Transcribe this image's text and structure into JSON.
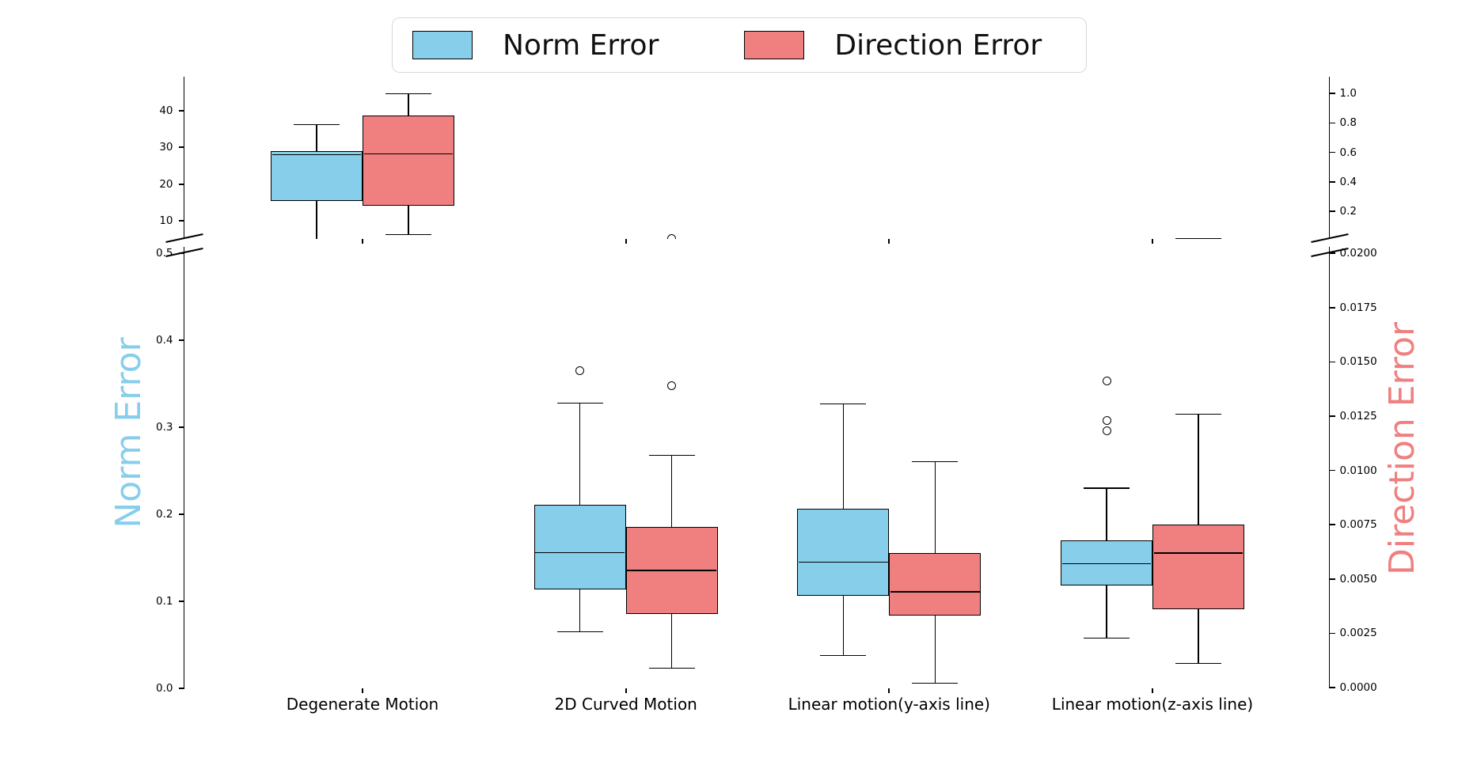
{
  "legend": {
    "items": [
      {
        "label": "Norm Error",
        "color": "#87CEEB"
      },
      {
        "label": "Direction Error",
        "color": "#F08080"
      }
    ]
  },
  "axes": {
    "left": {
      "title": "Norm Error",
      "color": "#87CEEB",
      "top_panel": {
        "range": [
          5.0,
          49.3
        ],
        "ticks": [
          {
            "label": "40",
            "value": 40
          },
          {
            "label": "30",
            "value": 30
          },
          {
            "label": "20",
            "value": 20
          },
          {
            "label": "10",
            "value": 10
          }
        ]
      },
      "bottom_panel": {
        "range": [
          0.0,
          0.507
        ],
        "ticks": [
          {
            "label": "0.5",
            "value": 0.5
          },
          {
            "label": "0.4",
            "value": 0.4
          },
          {
            "label": "0.3",
            "value": 0.3
          },
          {
            "label": "0.2",
            "value": 0.2
          },
          {
            "label": "0.1",
            "value": 0.1
          },
          {
            "label": "0.0",
            "value": 0.0
          }
        ]
      }
    },
    "right": {
      "title": "Direction Error",
      "color": "#F08080",
      "top_panel": {
        "range": [
          0.012,
          1.11
        ],
        "ticks": [
          {
            "label": "1.0",
            "value": 1.0
          },
          {
            "label": "0.8",
            "value": 0.8
          },
          {
            "label": "0.6",
            "value": 0.6
          },
          {
            "label": "0.4",
            "value": 0.4
          },
          {
            "label": "0.2",
            "value": 0.2
          }
        ]
      },
      "bottom_panel": {
        "range": [
          0.0,
          0.0203
        ],
        "ticks": [
          {
            "label": "0.0200",
            "value": 0.02
          },
          {
            "label": "0.0175",
            "value": 0.0175
          },
          {
            "label": "0.0150",
            "value": 0.015
          },
          {
            "label": "0.0125",
            "value": 0.0125
          },
          {
            "label": "0.0100",
            "value": 0.01
          },
          {
            "label": "0.0075",
            "value": 0.0075
          },
          {
            "label": "0.0050",
            "value": 0.005
          },
          {
            "label": "0.0025",
            "value": 0.0025
          },
          {
            "label": "0.0000",
            "value": 0.0
          }
        ]
      }
    }
  },
  "chart_data": {
    "type": "boxplot",
    "layout": "broken-y-axis, two panels, twin y axes",
    "categories": [
      "Degenerate Motion",
      "2D Curved Motion",
      "Linear motion(y-axis line)",
      "Linear motion(z-axis line)"
    ],
    "axis_break": {
      "left_axis_gap": [
        0.507,
        5.0
      ],
      "right_axis_gap": [
        0.0203,
        0.012
      ]
    },
    "series": [
      {
        "name": "Norm Error",
        "axis": "left",
        "color": "#87CEEB",
        "boxes": [
          {
            "category": "Degenerate Motion",
            "whislo": 2.0,
            "whislo_clipped_below_break": true,
            "q1": 15.5,
            "med": 28.0,
            "q3": 29.0,
            "whishi": 36.2,
            "fliers": []
          },
          {
            "category": "2D Curved Motion",
            "whislo": 0.065,
            "q1": 0.114,
            "med": 0.156,
            "q3": 0.211,
            "whishi": 0.328,
            "fliers": [
              0.365
            ]
          },
          {
            "category": "Linear motion(y-axis line)",
            "whislo": 0.038,
            "q1": 0.106,
            "med": 0.145,
            "q3": 0.206,
            "whishi": 0.327,
            "fliers": []
          },
          {
            "category": "Linear motion(z-axis line)",
            "whislo": 0.058,
            "q1": 0.118,
            "med": 0.143,
            "q3": 0.17,
            "whishi": 0.23,
            "fliers": [
              0.296,
              0.308,
              0.353
            ]
          }
        ]
      },
      {
        "name": "Direction Error",
        "axis": "right",
        "color": "#F08080",
        "boxes": [
          {
            "category": "Degenerate Motion",
            "whislo": 0.04,
            "q1": 0.24,
            "med": 0.59,
            "q3": 0.85,
            "whishi": 1.0,
            "fliers": []
          },
          {
            "category": "2D Curved Motion",
            "whislo": 0.0009,
            "q1": 0.0034,
            "med": 0.0054,
            "q3": 0.0074,
            "whishi": 0.0107,
            "fliers": [
              0.0139
            ]
          },
          {
            "category": "Linear motion(y-axis line)",
            "whislo": 0.0002,
            "q1": 0.0033,
            "med": 0.0044,
            "q3": 0.0062,
            "whishi": 0.0104,
            "fliers": []
          },
          {
            "category": "Linear motion(z-axis line)",
            "whislo": 0.0011,
            "q1": 0.0036,
            "med": 0.0062,
            "q3": 0.0075,
            "whishi": 0.0126,
            "fliers": []
          }
        ]
      }
    ]
  }
}
